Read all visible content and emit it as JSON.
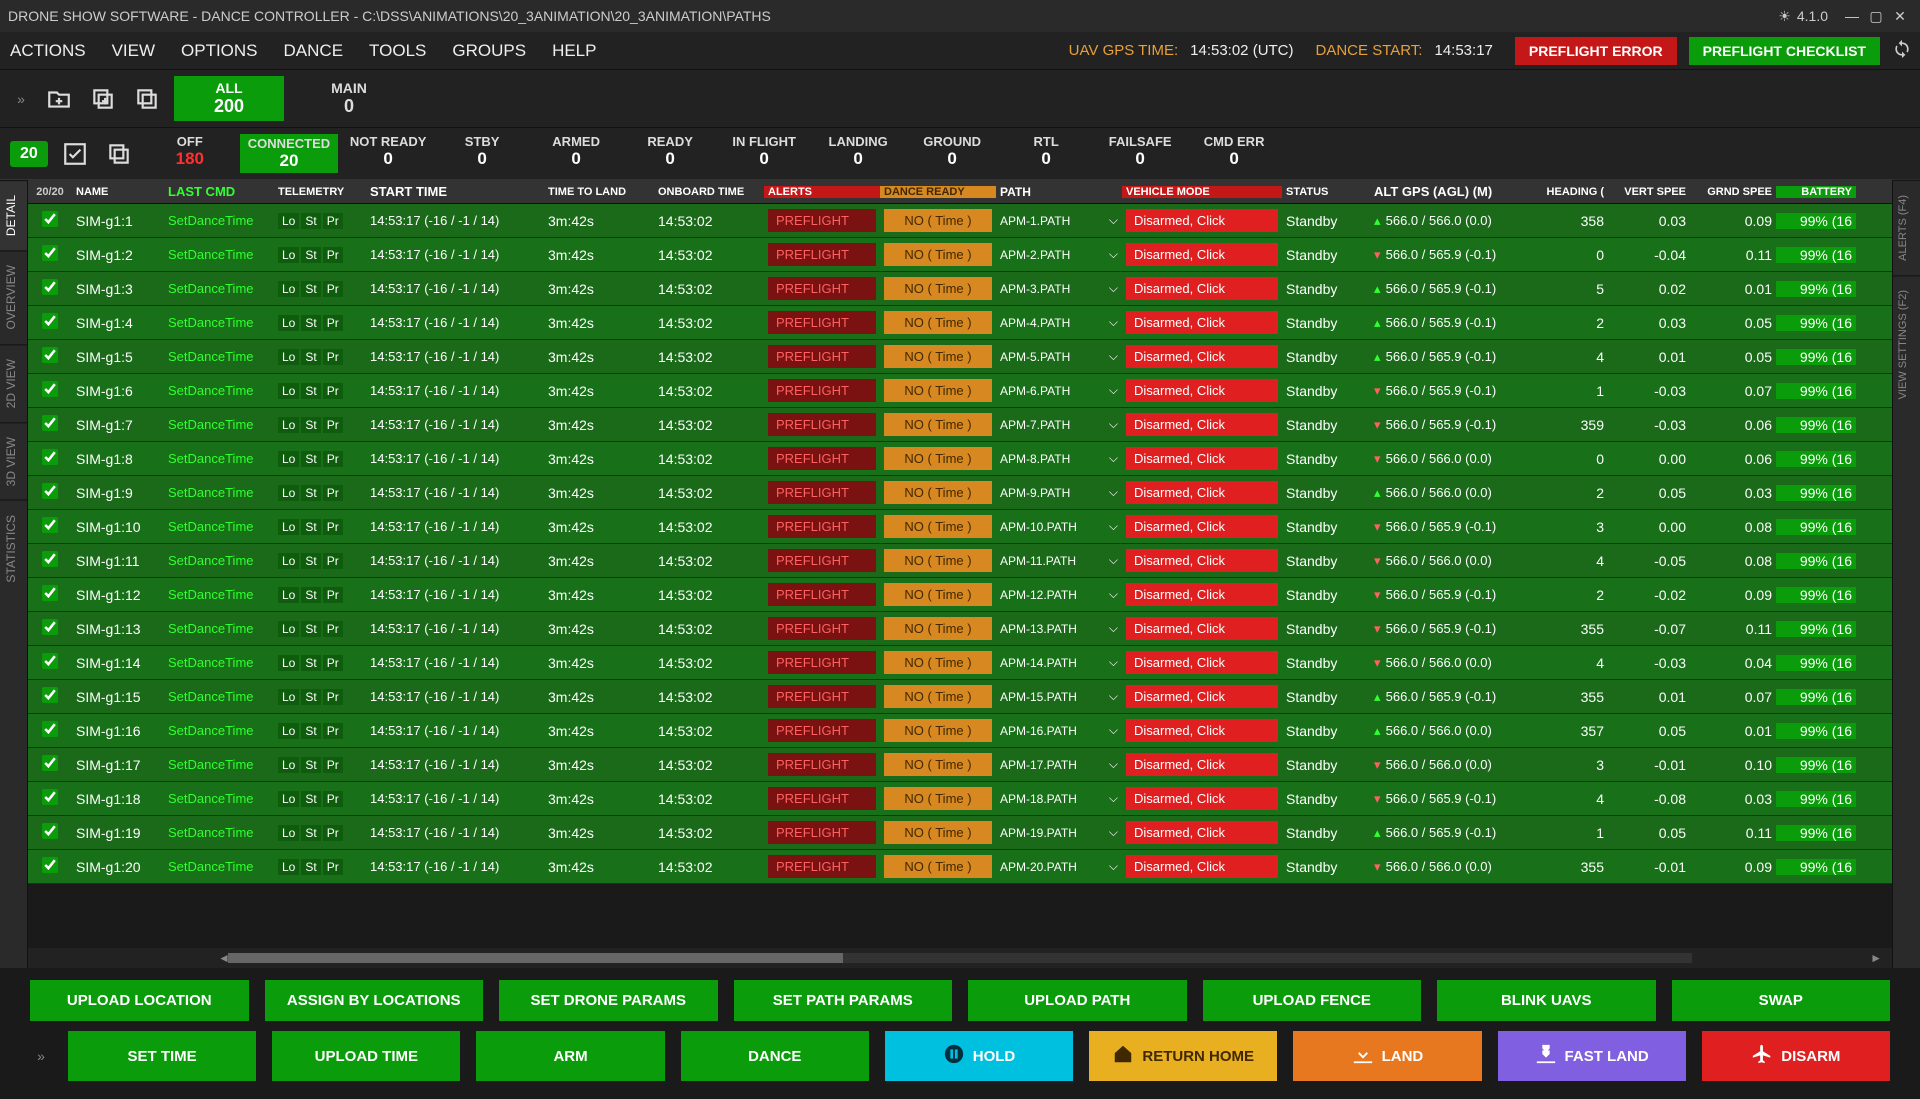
{
  "titlebar": {
    "title": "DRONE SHOW SOFTWARE - DANCE CONTROLLER - C:\\DSS\\ANIMATIONS\\20_3ANIMATION\\20_3ANIMATION\\PATHS",
    "version": "4.1.0"
  },
  "menu": {
    "items": [
      "ACTIONS",
      "VIEW",
      "OPTIONS",
      "DANCE",
      "TOOLS",
      "GROUPS",
      "HELP"
    ],
    "gps_label": "UAV GPS TIME:",
    "gps_val": "14:53:02 (UTC)",
    "start_label": "DANCE START:",
    "start_val": "14:53:17",
    "preflight_error": "PREFLIGHT ERROR",
    "preflight_checklist": "PREFLIGHT CHECKLIST"
  },
  "stats1": {
    "all": {
      "l": "ALL",
      "v": "200"
    },
    "main": {
      "l": "MAIN",
      "v": "0"
    }
  },
  "stats2": {
    "badge": "20",
    "items": [
      {
        "l": "OFF",
        "v": "180",
        "cls": "v-red"
      },
      {
        "l": "CONNECTED",
        "v": "20",
        "box": "stat2-green"
      },
      {
        "l": "NOT READY",
        "v": "0"
      },
      {
        "l": "STBY",
        "v": "0"
      },
      {
        "l": "ARMED",
        "v": "0"
      },
      {
        "l": "READY",
        "v": "0"
      },
      {
        "l": "IN FLIGHT",
        "v": "0"
      },
      {
        "l": "LANDING",
        "v": "0"
      },
      {
        "l": "GROUND",
        "v": "0"
      },
      {
        "l": "RTL",
        "v": "0"
      },
      {
        "l": "FAILSAFE",
        "v": "0"
      },
      {
        "l": "CMD ERR",
        "v": "0"
      }
    ]
  },
  "sidetabs_left": [
    "DETAIL",
    "OVERVIEW",
    "2D VIEW",
    "3D VIEW",
    "STATISTICS"
  ],
  "sidetabs_right": [
    "ALERTS (F4)",
    "VIEW SETTINGS (F2)"
  ],
  "columns": [
    "20/20",
    "NAME",
    "LAST CMD",
    "TELEMETRY",
    "START TIME",
    "TIME TO LAND",
    "ONBOARD TIME",
    "ALERTS",
    "DANCE READY",
    "PATH",
    "VEHICLE MODE",
    "STATUS",
    "ALT GPS (AGL) (M)",
    "HEADING (",
    "VERT SPEE",
    "GRND SPEE",
    "BATTERY"
  ],
  "rows": [
    {
      "name": "SIM-g1:1",
      "cmd": "SetDanceTime",
      "start": "14:53:17 (-16 / -1 / 14)",
      "ttl": "3m:42s",
      "ob": "14:53:02",
      "alert": "PREFLIGHT",
      "ready": "NO ( Time )",
      "path": "APM-1.PATH",
      "mode": "Disarmed, Click",
      "status": "Standby",
      "alt": "566.0 / 566.0 (0.0)",
      "ind": "up",
      "hdg": "358",
      "vs": "0.03",
      "gs": "0.09",
      "bat": "99% (16"
    },
    {
      "name": "SIM-g1:2",
      "cmd": "SetDanceTime",
      "start": "14:53:17 (-16 / -1 / 14)",
      "ttl": "3m:42s",
      "ob": "14:53:02",
      "alert": "PREFLIGHT",
      "ready": "NO ( Time )",
      "path": "APM-2.PATH",
      "mode": "Disarmed, Click",
      "status": "Standby",
      "alt": "566.0 / 565.9 (-0.1)",
      "ind": "down",
      "hdg": "0",
      "vs": "-0.04",
      "gs": "0.11",
      "bat": "99% (16"
    },
    {
      "name": "SIM-g1:3",
      "cmd": "SetDanceTime",
      "start": "14:53:17 (-16 / -1 / 14)",
      "ttl": "3m:42s",
      "ob": "14:53:02",
      "alert": "PREFLIGHT",
      "ready": "NO ( Time )",
      "path": "APM-3.PATH",
      "mode": "Disarmed, Click",
      "status": "Standby",
      "alt": "566.0 / 565.9 (-0.1)",
      "ind": "up",
      "hdg": "5",
      "vs": "0.02",
      "gs": "0.01",
      "bat": "99% (16"
    },
    {
      "name": "SIM-g1:4",
      "cmd": "SetDanceTime",
      "start": "14:53:17 (-16 / -1 / 14)",
      "ttl": "3m:42s",
      "ob": "14:53:02",
      "alert": "PREFLIGHT",
      "ready": "NO ( Time )",
      "path": "APM-4.PATH",
      "mode": "Disarmed, Click",
      "status": "Standby",
      "alt": "566.0 / 565.9 (-0.1)",
      "ind": "up",
      "hdg": "2",
      "vs": "0.03",
      "gs": "0.05",
      "bat": "99% (16"
    },
    {
      "name": "SIM-g1:5",
      "cmd": "SetDanceTime",
      "start": "14:53:17 (-16 / -1 / 14)",
      "ttl": "3m:42s",
      "ob": "14:53:02",
      "alert": "PREFLIGHT",
      "ready": "NO ( Time )",
      "path": "APM-5.PATH",
      "mode": "Disarmed, Click",
      "status": "Standby",
      "alt": "566.0 / 565.9 (-0.1)",
      "ind": "up",
      "hdg": "4",
      "vs": "0.01",
      "gs": "0.05",
      "bat": "99% (16"
    },
    {
      "name": "SIM-g1:6",
      "cmd": "SetDanceTime",
      "start": "14:53:17 (-16 / -1 / 14)",
      "ttl": "3m:42s",
      "ob": "14:53:02",
      "alert": "PREFLIGHT",
      "ready": "NO ( Time )",
      "path": "APM-6.PATH",
      "mode": "Disarmed, Click",
      "status": "Standby",
      "alt": "566.0 / 565.9 (-0.1)",
      "ind": "down",
      "hdg": "1",
      "vs": "-0.03",
      "gs": "0.07",
      "bat": "99% (16"
    },
    {
      "name": "SIM-g1:7",
      "cmd": "SetDanceTime",
      "start": "14:53:17 (-16 / -1 / 14)",
      "ttl": "3m:42s",
      "ob": "14:53:02",
      "alert": "PREFLIGHT",
      "ready": "NO ( Time )",
      "path": "APM-7.PATH",
      "mode": "Disarmed, Click",
      "status": "Standby",
      "alt": "566.0 / 565.9 (-0.1)",
      "ind": "down",
      "hdg": "359",
      "vs": "-0.03",
      "gs": "0.06",
      "bat": "99% (16"
    },
    {
      "name": "SIM-g1:8",
      "cmd": "SetDanceTime",
      "start": "14:53:17 (-16 / -1 / 14)",
      "ttl": "3m:42s",
      "ob": "14:53:02",
      "alert": "PREFLIGHT",
      "ready": "NO ( Time )",
      "path": "APM-8.PATH",
      "mode": "Disarmed, Click",
      "status": "Standby",
      "alt": "566.0 / 566.0 (0.0)",
      "ind": "down",
      "hdg": "0",
      "vs": "0.00",
      "gs": "0.06",
      "bat": "99% (16"
    },
    {
      "name": "SIM-g1:9",
      "cmd": "SetDanceTime",
      "start": "14:53:17 (-16 / -1 / 14)",
      "ttl": "3m:42s",
      "ob": "14:53:02",
      "alert": "PREFLIGHT",
      "ready": "NO ( Time )",
      "path": "APM-9.PATH",
      "mode": "Disarmed, Click",
      "status": "Standby",
      "alt": "566.0 / 566.0 (0.0)",
      "ind": "up",
      "hdg": "2",
      "vs": "0.05",
      "gs": "0.03",
      "bat": "99% (16"
    },
    {
      "name": "SIM-g1:10",
      "cmd": "SetDanceTime",
      "start": "14:53:17 (-16 / -1 / 14)",
      "ttl": "3m:42s",
      "ob": "14:53:02",
      "alert": "PREFLIGHT",
      "ready": "NO ( Time )",
      "path": "APM-10.PATH",
      "mode": "Disarmed, Click",
      "status": "Standby",
      "alt": "566.0 / 565.9 (-0.1)",
      "ind": "down",
      "hdg": "3",
      "vs": "0.00",
      "gs": "0.08",
      "bat": "99% (16"
    },
    {
      "name": "SIM-g1:11",
      "cmd": "SetDanceTime",
      "start": "14:53:17 (-16 / -1 / 14)",
      "ttl": "3m:42s",
      "ob": "14:53:02",
      "alert": "PREFLIGHT",
      "ready": "NO ( Time )",
      "path": "APM-11.PATH",
      "mode": "Disarmed, Click",
      "status": "Standby",
      "alt": "566.0 / 566.0 (0.0)",
      "ind": "down",
      "hdg": "4",
      "vs": "-0.05",
      "gs": "0.08",
      "bat": "99% (16"
    },
    {
      "name": "SIM-g1:12",
      "cmd": "SetDanceTime",
      "start": "14:53:17 (-16 / -1 / 14)",
      "ttl": "3m:42s",
      "ob": "14:53:02",
      "alert": "PREFLIGHT",
      "ready": "NO ( Time )",
      "path": "APM-12.PATH",
      "mode": "Disarmed, Click",
      "status": "Standby",
      "alt": "566.0 / 565.9 (-0.1)",
      "ind": "down",
      "hdg": "2",
      "vs": "-0.02",
      "gs": "0.09",
      "bat": "99% (16"
    },
    {
      "name": "SIM-g1:13",
      "cmd": "SetDanceTime",
      "start": "14:53:17 (-16 / -1 / 14)",
      "ttl": "3m:42s",
      "ob": "14:53:02",
      "alert": "PREFLIGHT",
      "ready": "NO ( Time )",
      "path": "APM-13.PATH",
      "mode": "Disarmed, Click",
      "status": "Standby",
      "alt": "566.0 / 565.9 (-0.1)",
      "ind": "down",
      "hdg": "355",
      "vs": "-0.07",
      "gs": "0.11",
      "bat": "99% (16"
    },
    {
      "name": "SIM-g1:14",
      "cmd": "SetDanceTime",
      "start": "14:53:17 (-16 / -1 / 14)",
      "ttl": "3m:42s",
      "ob": "14:53:02",
      "alert": "PREFLIGHT",
      "ready": "NO ( Time )",
      "path": "APM-14.PATH",
      "mode": "Disarmed, Click",
      "status": "Standby",
      "alt": "566.0 / 566.0 (0.0)",
      "ind": "down",
      "hdg": "4",
      "vs": "-0.03",
      "gs": "0.04",
      "bat": "99% (16"
    },
    {
      "name": "SIM-g1:15",
      "cmd": "SetDanceTime",
      "start": "14:53:17 (-16 / -1 / 14)",
      "ttl": "3m:42s",
      "ob": "14:53:02",
      "alert": "PREFLIGHT",
      "ready": "NO ( Time )",
      "path": "APM-15.PATH",
      "mode": "Disarmed, Click",
      "status": "Standby",
      "alt": "566.0 / 565.9 (-0.1)",
      "ind": "up",
      "hdg": "355",
      "vs": "0.01",
      "gs": "0.07",
      "bat": "99% (16"
    },
    {
      "name": "SIM-g1:16",
      "cmd": "SetDanceTime",
      "start": "14:53:17 (-16 / -1 / 14)",
      "ttl": "3m:42s",
      "ob": "14:53:02",
      "alert": "PREFLIGHT",
      "ready": "NO ( Time )",
      "path": "APM-16.PATH",
      "mode": "Disarmed, Click",
      "status": "Standby",
      "alt": "566.0 / 566.0 (0.0)",
      "ind": "up",
      "hdg": "357",
      "vs": "0.05",
      "gs": "0.01",
      "bat": "99% (16"
    },
    {
      "name": "SIM-g1:17",
      "cmd": "SetDanceTime",
      "start": "14:53:17 (-16 / -1 / 14)",
      "ttl": "3m:42s",
      "ob": "14:53:02",
      "alert": "PREFLIGHT",
      "ready": "NO ( Time )",
      "path": "APM-17.PATH",
      "mode": "Disarmed, Click",
      "status": "Standby",
      "alt": "566.0 / 566.0 (0.0)",
      "ind": "down",
      "hdg": "3",
      "vs": "-0.01",
      "gs": "0.10",
      "bat": "99% (16"
    },
    {
      "name": "SIM-g1:18",
      "cmd": "SetDanceTime",
      "start": "14:53:17 (-16 / -1 / 14)",
      "ttl": "3m:42s",
      "ob": "14:53:02",
      "alert": "PREFLIGHT",
      "ready": "NO ( Time )",
      "path": "APM-18.PATH",
      "mode": "Disarmed, Click",
      "status": "Standby",
      "alt": "566.0 / 565.9 (-0.1)",
      "ind": "down",
      "hdg": "4",
      "vs": "-0.08",
      "gs": "0.03",
      "bat": "99% (16"
    },
    {
      "name": "SIM-g1:19",
      "cmd": "SetDanceTime",
      "start": "14:53:17 (-16 / -1 / 14)",
      "ttl": "3m:42s",
      "ob": "14:53:02",
      "alert": "PREFLIGHT",
      "ready": "NO ( Time )",
      "path": "APM-19.PATH",
      "mode": "Disarmed, Click",
      "status": "Standby",
      "alt": "566.0 / 565.9 (-0.1)",
      "ind": "up",
      "hdg": "1",
      "vs": "0.05",
      "gs": "0.11",
      "bat": "99% (16"
    },
    {
      "name": "SIM-g1:20",
      "cmd": "SetDanceTime",
      "start": "14:53:17 (-16 / -1 / 14)",
      "ttl": "3m:42s",
      "ob": "14:53:02",
      "alert": "PREFLIGHT",
      "ready": "NO ( Time )",
      "path": "APM-20.PATH",
      "mode": "Disarmed, Click",
      "status": "Standby",
      "alt": "566.0 / 566.0 (0.0)",
      "ind": "down",
      "hdg": "355",
      "vs": "-0.01",
      "gs": "0.09",
      "bat": "99% (16"
    }
  ],
  "footer1": [
    "UPLOAD LOCATION",
    "ASSIGN BY LOCATIONS",
    "SET DRONE PARAMS",
    "SET PATH PARAMS",
    "UPLOAD PATH",
    "UPLOAD FENCE",
    "BLINK UAVS",
    "SWAP"
  ],
  "footer2": [
    {
      "l": "SET TIME",
      "c": "fb-green"
    },
    {
      "l": "UPLOAD TIME",
      "c": "fb-green"
    },
    {
      "l": "ARM",
      "c": "fb-green"
    },
    {
      "l": "DANCE",
      "c": "fb-green"
    },
    {
      "l": "HOLD",
      "c": "fb-cyan",
      "icon": "pause"
    },
    {
      "l": "RETURN HOME",
      "c": "fb-yellow",
      "icon": "home"
    },
    {
      "l": "LAND",
      "c": "fb-orange",
      "icon": "land"
    },
    {
      "l": "FAST LAND",
      "c": "fb-purple",
      "icon": "fastland"
    },
    {
      "l": "DISARM",
      "c": "fb-red",
      "icon": "disarm"
    }
  ]
}
